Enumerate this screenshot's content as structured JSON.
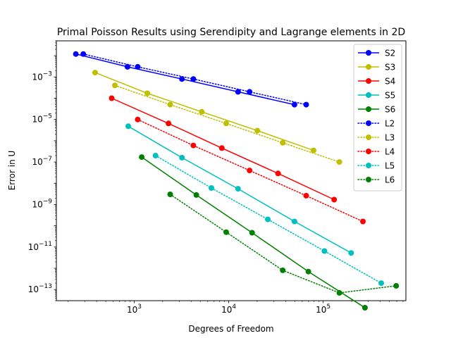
{
  "chart_data": {
    "type": "line",
    "title": "Primal Poisson Results using Serendipity and Lagrange elements in 2D",
    "xlabel": "Degrees of Freedom",
    "ylabel": "Error in U",
    "xscale": "log",
    "yscale": "log",
    "xlim": [
      150,
      750000
    ],
    "ylim": [
      3e-14,
      0.05
    ],
    "xticks": [
      {
        "value": 1000,
        "base": "10",
        "exp": "3"
      },
      {
        "value": 10000,
        "base": "10",
        "exp": "4"
      },
      {
        "value": 100000,
        "base": "10",
        "exp": "5"
      }
    ],
    "yticks": [
      {
        "value": 1e-13,
        "base": "10",
        "exp": "−13"
      },
      {
        "value": 1e-11,
        "base": "10",
        "exp": "−11"
      },
      {
        "value": 1e-09,
        "base": "10",
        "exp": "−9"
      },
      {
        "value": 1e-07,
        "base": "10",
        "exp": "−7"
      },
      {
        "value": 1e-05,
        "base": "10",
        "exp": "−5"
      },
      {
        "value": 0.001,
        "base": "10",
        "exp": "−3"
      }
    ],
    "grid": false,
    "legend_position": "top-right",
    "series": [
      {
        "name": "S2",
        "color": "#0000ff",
        "linestyle": "solid",
        "x": [
          241,
          849,
          3201,
          12545,
          49665
        ],
        "y": [
          0.012,
          0.003,
          0.0008,
          0.0002,
          5e-05
        ]
      },
      {
        "name": "S3",
        "color": "#bfbf00",
        "linestyle": "solid",
        "x": [
          385,
          1377,
          5185,
          20097,
          79105
        ],
        "y": [
          0.0016,
          0.00017,
          2.3e-05,
          3e-06,
          3.5e-07
        ]
      },
      {
        "name": "S4",
        "color": "#ff0000",
        "linestyle": "solid",
        "x": [
          577,
          2305,
          8449,
          33281,
          130561
        ],
        "y": [
          0.0001,
          6.5e-06,
          4.5e-07,
          2.9e-08,
          1.7e-09
        ]
      },
      {
        "name": "S5",
        "color": "#00bfbf",
        "linestyle": "solid",
        "x": [
          865,
          3201,
          12545,
          49665,
          197633
        ],
        "y": [
          4.8e-06,
          1.6e-07,
          5.5e-09,
          1.6e-10,
          5.3e-12
        ]
      },
      {
        "name": "S6",
        "color": "#008000",
        "linestyle": "solid",
        "x": [
          1201,
          4545,
          17665,
          69633,
          276481
        ],
        "y": [
          1.7e-07,
          2.8e-09,
          4.7e-11,
          7e-13,
          1.4e-14
        ]
      },
      {
        "name": "L2",
        "color": "#0000ff",
        "linestyle": "dotted",
        "x": [
          289,
          1089,
          4225,
          16641,
          66049
        ],
        "y": [
          0.012,
          0.003,
          0.0008,
          0.0002,
          5e-05
        ]
      },
      {
        "name": "L3",
        "color": "#bfbf00",
        "linestyle": "dotted",
        "x": [
          625,
          2401,
          9409,
          37249,
          148225
        ],
        "y": [
          0.0004,
          5e-05,
          6.5e-06,
          8e-07,
          1e-07
        ]
      },
      {
        "name": "L4",
        "color": "#ff0000",
        "linestyle": "dotted",
        "x": [
          1089,
          4225,
          16641,
          66049,
          263169
        ],
        "y": [
          1e-05,
          6e-07,
          4e-08,
          2.6e-09,
          1.6e-10
        ]
      },
      {
        "name": "L5",
        "color": "#00bfbf",
        "linestyle": "dotted",
        "x": [
          1681,
          6561,
          25921,
          103041,
          410881
        ],
        "y": [
          2e-07,
          6e-09,
          2e-10,
          6.5e-12,
          2e-13
        ]
      },
      {
        "name": "L6",
        "color": "#008000",
        "linestyle": "dotted",
        "x": [
          2401,
          9409,
          37249,
          148225,
          591361
        ],
        "y": [
          3e-09,
          5e-11,
          8e-13,
          7e-14,
          1.5e-13
        ]
      }
    ]
  }
}
